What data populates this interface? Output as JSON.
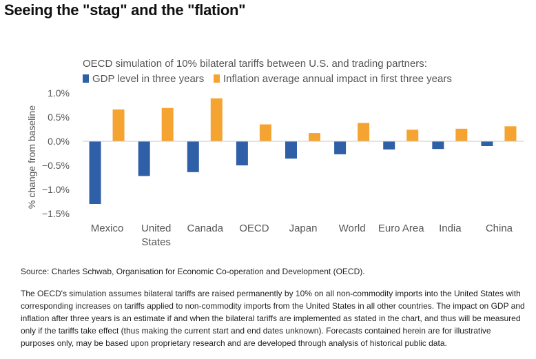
{
  "header": {
    "title": "Seeing the \"stag\" and the \"flation\""
  },
  "colors": {
    "gdp": "#2f5fa6",
    "inflation": "#f5a431",
    "text": "#555555",
    "axis": "#c8c8c8"
  },
  "chart_data": {
    "type": "bar",
    "title": "OECD simulation of 10% bilateral tariffs between U.S. and trading partners:",
    "ylabel": "% change from baseline",
    "xlabel": "",
    "ylim": [
      -1.5,
      1.0
    ],
    "yticks": [
      1.0,
      0.5,
      0.0,
      -0.5,
      -1.0,
      -1.5
    ],
    "ytick_labels": [
      "1.0%",
      "0.5%",
      "0.0%",
      "−0.5%",
      "−1.0%",
      "−1.5%"
    ],
    "grid": false,
    "legend_position": "top-left",
    "categories": [
      "Mexico",
      "United States",
      "Canada",
      "OECD",
      "Japan",
      "World",
      "Euro Area",
      "India",
      "China"
    ],
    "category_lines": [
      [
        "Mexico"
      ],
      [
        "United",
        "States"
      ],
      [
        "Canada"
      ],
      [
        "OECD"
      ],
      [
        "Japan"
      ],
      [
        "World"
      ],
      [
        "Euro Area"
      ],
      [
        "India"
      ],
      [
        "China"
      ]
    ],
    "series": [
      {
        "name": "GDP level in three years",
        "color": "#2f5fa6",
        "values": [
          -1.3,
          -0.72,
          -0.64,
          -0.5,
          -0.36,
          -0.27,
          -0.17,
          -0.16,
          -0.1
        ]
      },
      {
        "name": "Inflation average annual impact in first three years",
        "color": "#f5a431",
        "values": [
          0.66,
          0.69,
          0.89,
          0.35,
          0.17,
          0.38,
          0.24,
          0.26,
          0.31
        ]
      }
    ]
  },
  "footer": {
    "source": "Source: Charles Schwab, Organisation for Economic Co-operation and Development (OECD).",
    "note": "The OECD's simulation assumes bilateral tariffs are raised permanently by 10% on all non-commodity imports into the United States with corresponding increases on tariffs applied to non-commodity imports from the United States in all other countries. The impact on GDP and inflation after three years is an estimate if and when the bilateral tariffs are implemented as stated in the chart, and thus will be measured only if the tariffs take effect (thus making the current start and end dates unknown). Forecasts contained herein are for illustrative purposes only, may be based upon proprietary research and are developed through analysis of historical public data."
  }
}
